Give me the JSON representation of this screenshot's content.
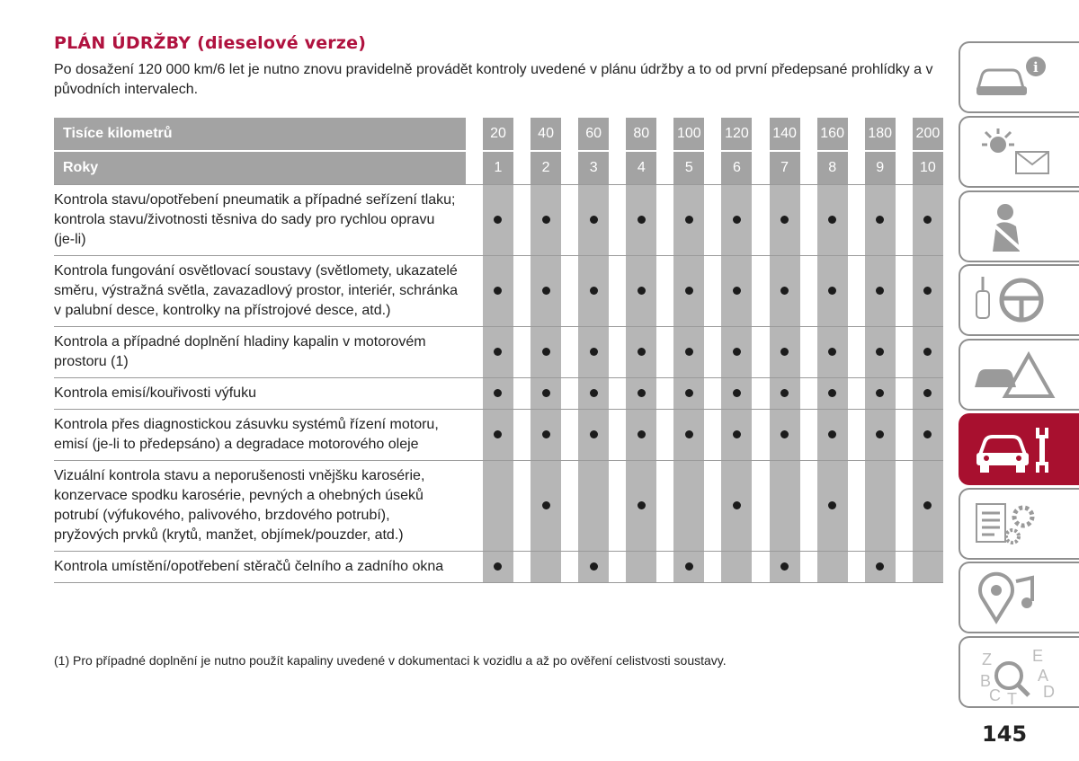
{
  "title": "PLÁN ÚDRŽBY (dieselové verze)",
  "intro": "Po dosažení 120 000 km/6 let je nutno znovu pravidelně provádět kontroly uvedené v plánu údržby a to od první předepsané prohlídky a v původních intervalech.",
  "table": {
    "km_label": "Tisíce kilometrů",
    "years_label": "Roky",
    "km": [
      "20",
      "40",
      "60",
      "80",
      "100",
      "120",
      "140",
      "160",
      "180",
      "200"
    ],
    "years": [
      "1",
      "2",
      "3",
      "4",
      "5",
      "6",
      "7",
      "8",
      "9",
      "10"
    ],
    "rows": [
      {
        "desc": "Kontrola stavu/opotřebení pneumatik a případné seřízení tlaku; kontrola stavu/životnosti těsniva do sady pro rychlou opravu (je-li)",
        "marks": [
          1,
          1,
          1,
          1,
          1,
          1,
          1,
          1,
          1,
          1
        ]
      },
      {
        "desc": "Kontrola fungování osvětlovací soustavy (světlomety, ukazatelé směru, výstražná světla, zavazadlový prostor, interiér, schránka v palubní desce, kontrolky na přístrojové desce, atd.)",
        "marks": [
          1,
          1,
          1,
          1,
          1,
          1,
          1,
          1,
          1,
          1
        ]
      },
      {
        "desc": "Kontrola a případné doplnění hladiny kapalin v motorovém prostoru (1)",
        "marks": [
          1,
          1,
          1,
          1,
          1,
          1,
          1,
          1,
          1,
          1
        ]
      },
      {
        "desc": "Kontrola emisí/kouřivosti výfuku",
        "marks": [
          1,
          1,
          1,
          1,
          1,
          1,
          1,
          1,
          1,
          1
        ]
      },
      {
        "desc": "Kontrola přes diagnostickou zásuvku systémů řízení motoru, emisí (je-li to předepsáno) a degradace motorového oleje",
        "marks": [
          1,
          1,
          1,
          1,
          1,
          1,
          1,
          1,
          1,
          1
        ]
      },
      {
        "desc": "Vizuální kontrola stavu a neporušenosti vnějšku karosérie, konzervace spodku karosérie, pevných a ohebných úseků potrubí (výfukového, palivového, brzdového potrubí), pryžových prvků (krytů, manžet, objímek/pouzder, atd.)",
        "marks": [
          0,
          1,
          0,
          1,
          0,
          1,
          0,
          1,
          0,
          1
        ]
      },
      {
        "desc": "Kontrola umístění/opotřebení stěračů čelního a zadního okna",
        "marks": [
          1,
          0,
          1,
          0,
          1,
          0,
          1,
          0,
          1,
          0
        ]
      }
    ]
  },
  "footnote": "(1) Pro případné doplnění je nutno použít kapaliny uvedené v dokumentaci k vozidlu a až po ověření celistvosti soustavy.",
  "sidebar": {
    "tabs": [
      {
        "icon": "car-info-icon"
      },
      {
        "icon": "dashboard-lights-icon"
      },
      {
        "icon": "safety-airbag-icon"
      },
      {
        "icon": "key-steering-wheel-icon"
      },
      {
        "icon": "emergency-icon"
      },
      {
        "icon": "car-maintenance-icon"
      },
      {
        "icon": "technical-data-icon"
      },
      {
        "icon": "multimedia-icon"
      },
      {
        "icon": "index-icon",
        "letters": [
          "Z",
          "E",
          "B",
          "A",
          "C",
          "T",
          "D"
        ]
      }
    ],
    "active_index": 5
  },
  "page_number": "145",
  "colors": {
    "accent": "#b0123f",
    "header_bg": "#a3a3a3",
    "mark_col": "#b6b6b6",
    "active_tab": "#a8102f"
  }
}
